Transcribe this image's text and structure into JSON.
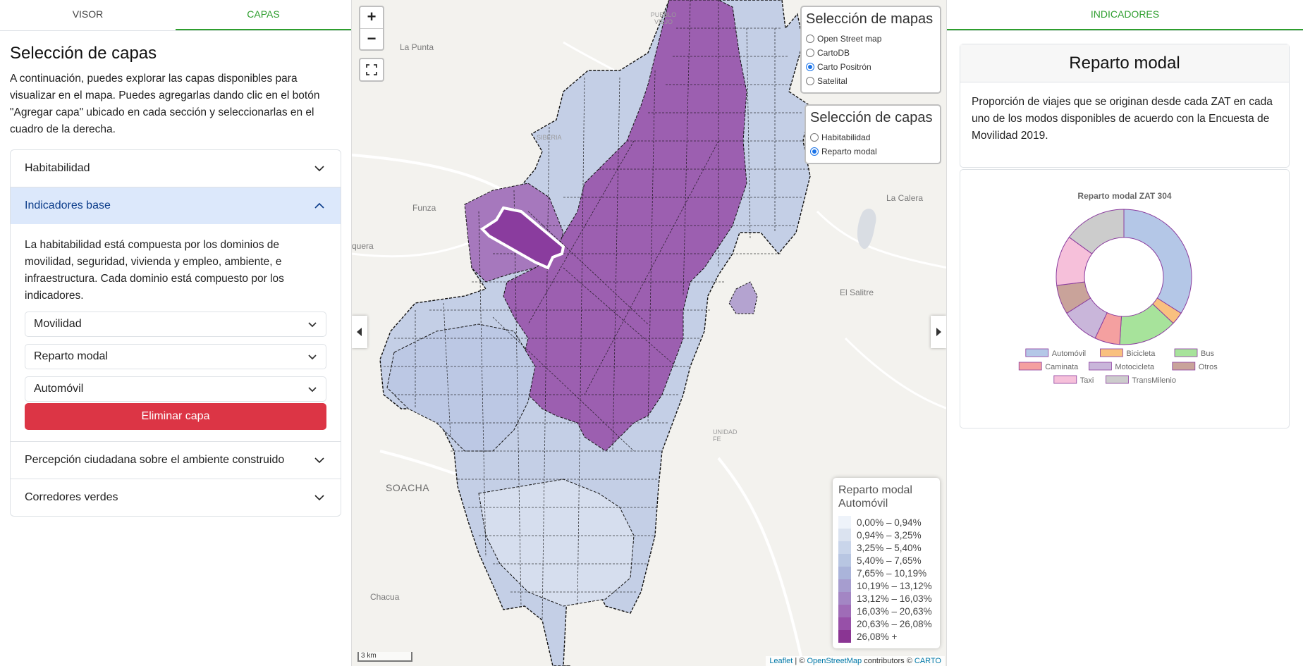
{
  "left": {
    "tabs": [
      "VISOR",
      "CAPAS"
    ],
    "title": "Selección de capas",
    "intro": "A continuación, puedes explorar las capas disponibles para visualizar en el mapa. Puedes agregarlas dando clic en el botón \"Agregar capa\" ubicado en cada sección y seleccionarlas en el cuadro de la derecha.",
    "sections": [
      "Habitabilidad",
      "Indicadores base",
      "Percepción ciudadana sobre el ambiente construido",
      "Corredores verdes"
    ],
    "base_text": "La habitabilidad está compuesta por los dominios de movilidad, seguridad, vivienda y empleo, ambiente, e infraestructura. Cada dominio está compuesto por los indicadores.",
    "selects": [
      "Movilidad",
      "Reparto modal",
      "Automóvil"
    ],
    "delete_button": "Eliminar capa"
  },
  "map": {
    "zoom_in": "+",
    "zoom_out": "−",
    "basemap_title": "Selección de mapas",
    "basemaps": [
      {
        "label": "Open Street map",
        "checked": false
      },
      {
        "label": "CartoDB",
        "checked": false
      },
      {
        "label": "Carto Positrón",
        "checked": true
      },
      {
        "label": "Satelital",
        "checked": false
      }
    ],
    "layers_title": "Selección de capas",
    "layers": [
      {
        "label": "Habitabilidad",
        "checked": false
      },
      {
        "label": "Reparto modal",
        "checked": true
      }
    ],
    "places": [
      "La Punta",
      "Funza",
      "SIBERIA",
      "La Calera",
      "El Salitre",
      "SOACHA",
      "Chacua",
      "PUEBLO VIEJO",
      "quera",
      "UNIDAD FE"
    ],
    "legend": {
      "title": "Reparto modal Automóvil",
      "items": [
        {
          "label": "0,00% – 0,94%",
          "color": "#eef3fa"
        },
        {
          "label": "0,94% – 3,25%",
          "color": "#dbe3f0"
        },
        {
          "label": "3,25% – 5,40%",
          "color": "#c9d5ea"
        },
        {
          "label": "5,40% – 7,65%",
          "color": "#b8c6e2"
        },
        {
          "label": "7,65% – 10,19%",
          "color": "#aab4da"
        },
        {
          "label": "10,19% – 13,12%",
          "color": "#a69dcf"
        },
        {
          "label": "13,12% – 16,03%",
          "color": "#a386c4"
        },
        {
          "label": "16,03% – 20,63%",
          "color": "#9f6cb7"
        },
        {
          "label": "20,63% – 26,08%",
          "color": "#9750a8"
        },
        {
          "label": "26,08% +",
          "color": "#8a3593"
        }
      ]
    },
    "scale": "3 km",
    "attribution": {
      "leaflet": "Leaflet",
      "sep": " | © ",
      "osm": "OpenStreetMap",
      "contrib": " contributors © ",
      "carto": "CARTO"
    }
  },
  "right": {
    "tab": "INDICADORES",
    "card_title": "Reparto modal",
    "card_text": "Proporción de viajes que se originan desde cada ZAT en cada uno de los modos disponibles de acuerdo con la Encuesta de Movilidad 2019."
  },
  "chart_data": {
    "type": "pie",
    "title": "Reparto modal ZAT 304",
    "hole": true,
    "series": [
      {
        "name": "Automóvil",
        "value": 34,
        "color": "#b4c7e7"
      },
      {
        "name": "Bicicleta",
        "value": 3,
        "color": "#f9c07f"
      },
      {
        "name": "Bus",
        "value": 14,
        "color": "#a7e39b"
      },
      {
        "name": "Caminata",
        "value": 6,
        "color": "#f4a0a0"
      },
      {
        "name": "Motocicleta",
        "value": 9,
        "color": "#c9b6da"
      },
      {
        "name": "Otros",
        "value": 7,
        "color": "#c9a39a"
      },
      {
        "name": "Taxi",
        "value": 12,
        "color": "#f6c0da"
      },
      {
        "name": "TransMilenio",
        "value": 15,
        "color": "#cccccc"
      }
    ]
  }
}
